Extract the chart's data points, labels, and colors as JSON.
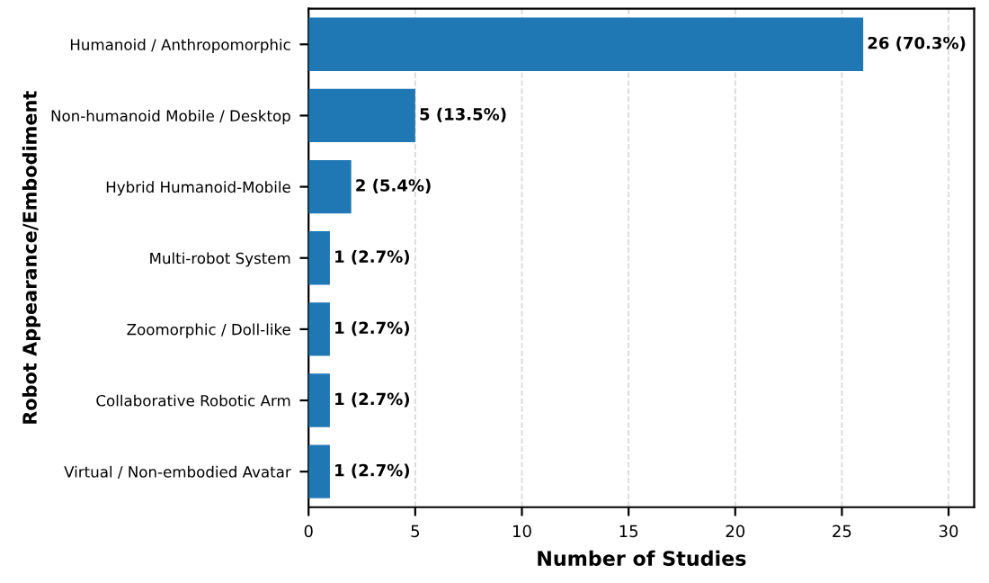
{
  "chart_data": {
    "type": "bar",
    "orientation": "horizontal",
    "xlabel": "Number of Studies",
    "ylabel": "Robot Appearance/Embodiment",
    "categories": [
      "Humanoid / Anthropomorphic",
      "Non-humanoid Mobile / Desktop",
      "Hybrid Humanoid-Mobile",
      "Multi-robot System",
      "Zoomorphic / Doll-like",
      "Collaborative Robotic Arm",
      "Virtual / Non-embodied Avatar"
    ],
    "values": [
      26,
      5,
      2,
      1,
      1,
      1,
      1
    ],
    "value_labels": [
      "26 (70.3%)",
      "5 (13.5%)",
      "2 (5.4%)",
      "1 (2.7%)",
      "1 (2.7%)",
      "1 (2.7%)",
      "1 (2.7%)"
    ],
    "color": "#1f77b4",
    "xlim": [
      0,
      31.2
    ],
    "xticks": [
      0,
      5,
      10,
      15,
      20,
      25,
      30
    ],
    "grid": "x",
    "line_style": "dashed"
  }
}
